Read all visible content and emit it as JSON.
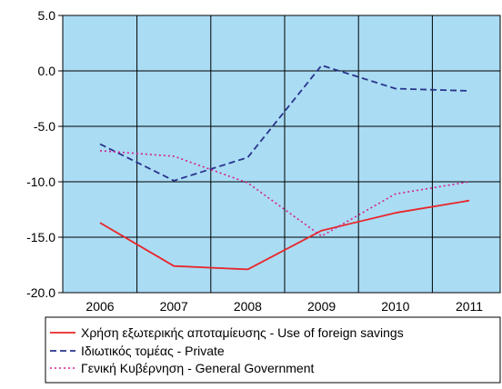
{
  "chart_data": {
    "type": "line",
    "x": [
      "2006",
      "2007",
      "2008",
      "2009",
      "2010",
      "2011"
    ],
    "ylim": [
      -20,
      5
    ],
    "yticks": [
      5,
      0,
      -5,
      -10,
      -15,
      -20
    ],
    "ytick_labels": [
      "5.0",
      "0.0",
      "-5.0",
      "-10.0",
      "-15.0",
      "-20.0"
    ],
    "grid": true,
    "plot_background": "#aadcf4",
    "legend_position": "bottom",
    "series": [
      {
        "name": "Χρήση εξωτερικής αποταμίευσης - Use of foreign savings",
        "color": "#e8262a",
        "style": "solid",
        "values": [
          -13.7,
          -17.6,
          -17.9,
          -14.4,
          -12.8,
          -11.7
        ]
      },
      {
        "name": "Ιδιωτικός τομέας - Private",
        "color": "#28348c",
        "style": "dashed",
        "values": [
          -6.6,
          -9.9,
          -7.8,
          0.5,
          -1.6,
          -1.8
        ]
      },
      {
        "name": "Γενική Κυβέρνηση - General Government",
        "color": "#d61f8e",
        "style": "dotted",
        "values": [
          -7.2,
          -7.7,
          -10.1,
          -14.9,
          -11.1,
          -10.0
        ]
      }
    ]
  }
}
